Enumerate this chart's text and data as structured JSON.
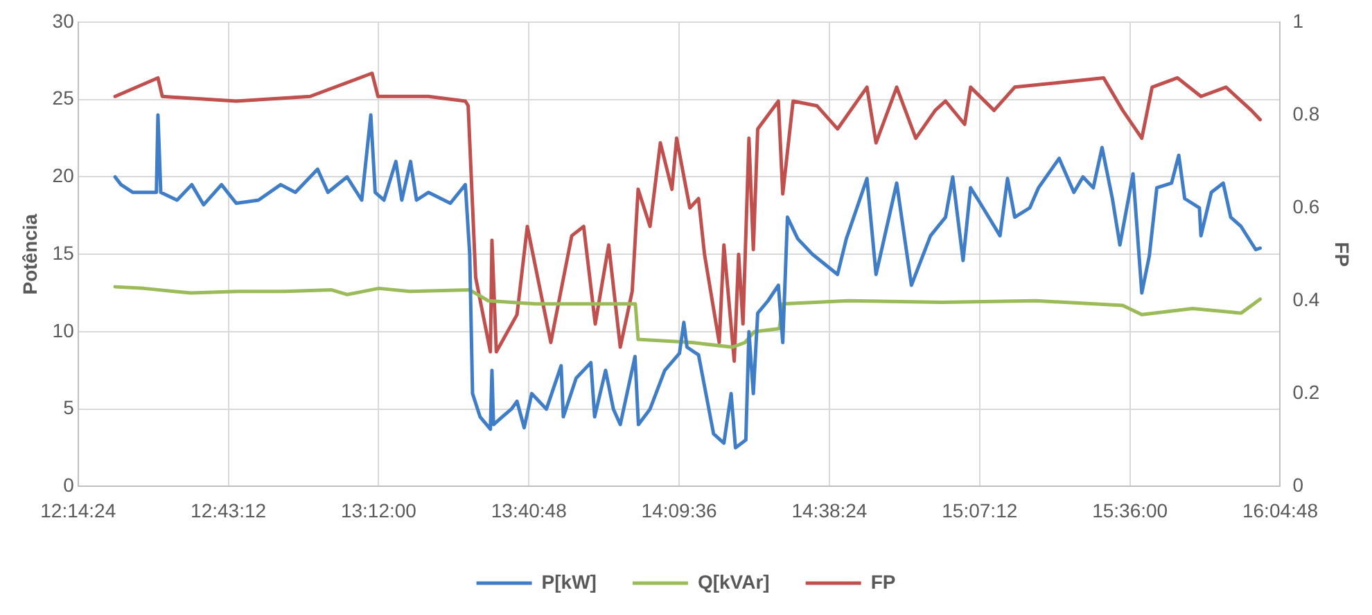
{
  "chart_data": {
    "type": "line",
    "ylabel": "Potência",
    "y2label": "FP",
    "xlim": [
      12.24,
      16.08
    ],
    "xticks": [
      {
        "value": 12.24,
        "label": "12:14:24"
      },
      {
        "value": 12.72,
        "label": "12:43:12"
      },
      {
        "value": 13.2,
        "label": "13:12:00"
      },
      {
        "value": 13.68,
        "label": "13:40:48"
      },
      {
        "value": 14.16,
        "label": "14:09:36"
      },
      {
        "value": 14.64,
        "label": "14:38:24"
      },
      {
        "value": 15.12,
        "label": "15:07:12"
      },
      {
        "value": 15.6,
        "label": "15:36:00"
      },
      {
        "value": 16.08,
        "label": "16:04:48"
      }
    ],
    "ylim": [
      0,
      30
    ],
    "yticks": [
      0,
      5,
      10,
      15,
      20,
      25,
      30
    ],
    "y2lim": [
      0,
      1
    ],
    "y2ticks": [
      0,
      0.2,
      0.4,
      0.6,
      0.8,
      1
    ],
    "grid": true,
    "legend": "bottom",
    "marker": "none",
    "line_style": "solid",
    "series": [
      {
        "name": "P[kW]",
        "color": "#3f7dc7",
        "x": [
          12.358,
          12.377,
          12.415,
          12.49,
          12.495,
          12.504,
          12.556,
          12.603,
          12.641,
          12.698,
          12.745,
          12.816,
          12.887,
          12.934,
          13.005,
          13.038,
          13.099,
          13.146,
          13.175,
          13.189,
          13.217,
          13.255,
          13.274,
          13.302,
          13.321,
          13.359,
          13.429,
          13.477,
          13.491,
          13.5,
          13.524,
          13.557,
          13.562,
          13.567,
          13.595,
          13.624,
          13.642,
          13.665,
          13.689,
          13.736,
          13.783,
          13.79,
          13.831,
          13.878,
          13.89,
          13.925,
          13.95,
          13.972,
          14.019,
          14.03,
          14.067,
          14.114,
          14.161,
          14.175,
          14.185,
          14.222,
          14.27,
          14.303,
          14.326,
          14.34,
          14.373,
          14.383,
          14.397,
          14.411,
          14.444,
          14.477,
          14.491,
          14.506,
          14.539,
          14.586,
          14.666,
          14.694,
          14.76,
          14.789,
          14.855,
          14.902,
          14.963,
          15.011,
          15.034,
          15.067,
          15.091,
          15.119,
          15.185,
          15.209,
          15.232,
          15.28,
          15.308,
          15.374,
          15.421,
          15.45,
          15.483,
          15.511,
          15.544,
          15.568,
          15.61,
          15.638,
          15.662,
          15.686,
          15.733,
          15.756,
          15.775,
          15.822,
          15.827,
          15.86,
          15.898,
          15.922,
          15.955,
          16.002,
          16.016
        ],
        "values": [
          20,
          19.5,
          19,
          19,
          24,
          19,
          18.5,
          19.5,
          18.2,
          19.5,
          18.3,
          18.5,
          19.5,
          19,
          20.5,
          19,
          20,
          18.5,
          24,
          19,
          18.5,
          21,
          18.5,
          21,
          18.5,
          19,
          18.3,
          19.5,
          15,
          6,
          4.5,
          3.7,
          7.5,
          4,
          4.5,
          5,
          5.5,
          3.8,
          6,
          5,
          7.8,
          4.5,
          7,
          8,
          4.5,
          7.5,
          5,
          4,
          8.4,
          4,
          5,
          7.5,
          8.6,
          10.6,
          9,
          8.5,
          3.4,
          2.8,
          6,
          2.5,
          3,
          10,
          6,
          11.2,
          12,
          13,
          9.3,
          17.4,
          16,
          15,
          13.7,
          16,
          19.9,
          13.7,
          19.6,
          13,
          16.2,
          17.4,
          20,
          14.6,
          19.3,
          18.4,
          16.2,
          19.9,
          17.4,
          18,
          19.3,
          21.2,
          19,
          20,
          19.3,
          21.9,
          18.6,
          15.6,
          20.2,
          12.5,
          14.9,
          19.3,
          19.6,
          21.4,
          18.6,
          18,
          16.2,
          19,
          19.6,
          17.4,
          16.8,
          15.3,
          15.4
        ]
      },
      {
        "name": "Q[kVAr]",
        "color": "#9bbb59",
        "x": [
          12.358,
          12.45,
          12.6,
          12.75,
          12.9,
          13.05,
          13.1,
          13.2,
          13.3,
          13.491,
          13.55,
          13.7,
          13.9,
          14.02,
          14.029,
          14.2,
          14.33,
          14.37,
          14.4,
          14.48,
          14.491,
          14.7,
          15.0,
          15.3,
          15.577,
          15.638,
          15.8,
          15.955,
          16.016
        ],
        "values": [
          12.9,
          12.8,
          12.5,
          12.6,
          12.6,
          12.7,
          12.4,
          12.8,
          12.6,
          12.7,
          12,
          11.8,
          11.8,
          11.8,
          9.5,
          9.3,
          9,
          9.3,
          10,
          10.2,
          11.8,
          12,
          11.9,
          12,
          11.7,
          11.1,
          11.5,
          11.2,
          12.1
        ]
      },
      {
        "name": "FP",
        "color": "#c0504d",
        "axis": "y2",
        "x": [
          12.358,
          12.495,
          12.509,
          12.745,
          12.981,
          13.179,
          13.198,
          13.359,
          13.477,
          13.486,
          13.51,
          13.557,
          13.562,
          13.576,
          13.642,
          13.675,
          13.75,
          13.817,
          13.855,
          13.892,
          13.935,
          13.972,
          14.01,
          14.029,
          14.067,
          14.1,
          14.137,
          14.152,
          14.194,
          14.222,
          14.241,
          14.288,
          14.303,
          14.336,
          14.35,
          14.364,
          14.383,
          14.397,
          14.411,
          14.477,
          14.491,
          14.524,
          14.6,
          14.666,
          14.76,
          14.789,
          14.855,
          14.916,
          14.978,
          15.011,
          15.072,
          15.091,
          15.166,
          15.232,
          15.374,
          15.516,
          15.577,
          15.638,
          15.671,
          15.752,
          15.827,
          15.907,
          15.988,
          16.016
        ],
        "values": [
          0.84,
          0.88,
          0.84,
          0.83,
          0.84,
          0.89,
          0.84,
          0.84,
          0.83,
          0.82,
          0.45,
          0.29,
          0.53,
          0.29,
          0.37,
          0.56,
          0.31,
          0.54,
          0.56,
          0.35,
          0.52,
          0.3,
          0.42,
          0.64,
          0.56,
          0.74,
          0.64,
          0.75,
          0.6,
          0.62,
          0.5,
          0.31,
          0.52,
          0.27,
          0.5,
          0.35,
          0.75,
          0.51,
          0.77,
          0.83,
          0.63,
          0.83,
          0.82,
          0.77,
          0.86,
          0.74,
          0.86,
          0.75,
          0.81,
          0.83,
          0.78,
          0.86,
          0.81,
          0.86,
          0.87,
          0.88,
          0.81,
          0.75,
          0.86,
          0.88,
          0.84,
          0.86,
          0.81,
          0.79
        ]
      }
    ]
  }
}
